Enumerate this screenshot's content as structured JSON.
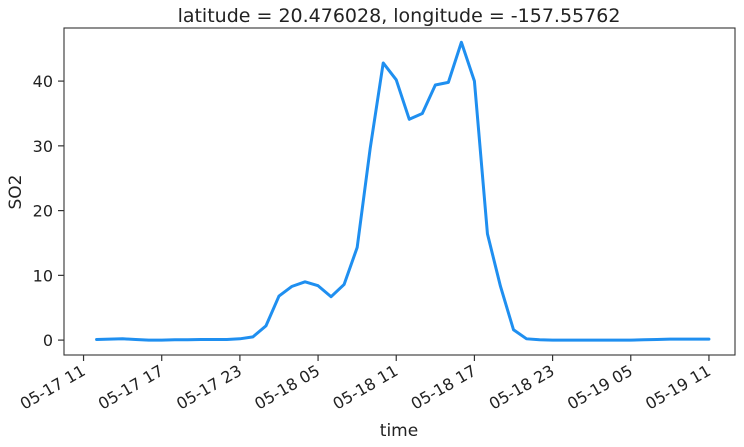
{
  "chart_data": {
    "type": "line",
    "title": "latitude = 20.476028, longitude = -157.55762",
    "xlabel": "time",
    "ylabel": "SO2",
    "x_tick_labels": [
      "05-17 11",
      "05-17 17",
      "05-17 23",
      "05-18 05",
      "05-18 11",
      "05-18 17",
      "05-18 23",
      "05-19 05",
      "05-19 11"
    ],
    "x_tick_hours": [
      0,
      6,
      12,
      18,
      24,
      30,
      36,
      42,
      48
    ],
    "y_ticks": [
      0,
      10,
      20,
      30,
      40
    ],
    "xlim_hours": [
      -1.5,
      50
    ],
    "ylim": [
      -2.3,
      48.2
    ],
    "grid": false,
    "series": [
      {
        "color": "#1f8ff0",
        "x_hours": [
          1,
          3,
          4,
          5,
          6,
          7,
          8,
          9,
          10,
          11,
          12,
          13,
          14,
          15,
          16,
          17,
          18,
          19,
          20,
          21,
          22,
          23,
          24,
          25,
          26,
          27,
          28,
          29,
          30,
          31,
          32,
          33,
          34,
          35,
          36,
          37,
          38,
          39,
          40,
          41,
          42,
          43,
          44,
          45,
          46,
          47,
          48
        ],
        "values": [
          0.1,
          0.2,
          0.1,
          0.0,
          0.0,
          0.05,
          0.05,
          0.1,
          0.1,
          0.1,
          0.2,
          0.5,
          2.2,
          6.8,
          8.3,
          9.0,
          8.4,
          6.7,
          8.6,
          14.3,
          29.6,
          42.8,
          40.2,
          34.1,
          35.0,
          39.4,
          39.8,
          46.0,
          40.0,
          16.4,
          8.3,
          1.6,
          0.2,
          0.05,
          0.0,
          0.0,
          0.0,
          0.0,
          0.0,
          0.0,
          0.0,
          0.05,
          0.1,
          0.15,
          0.15,
          0.15,
          0.15
        ]
      }
    ]
  }
}
